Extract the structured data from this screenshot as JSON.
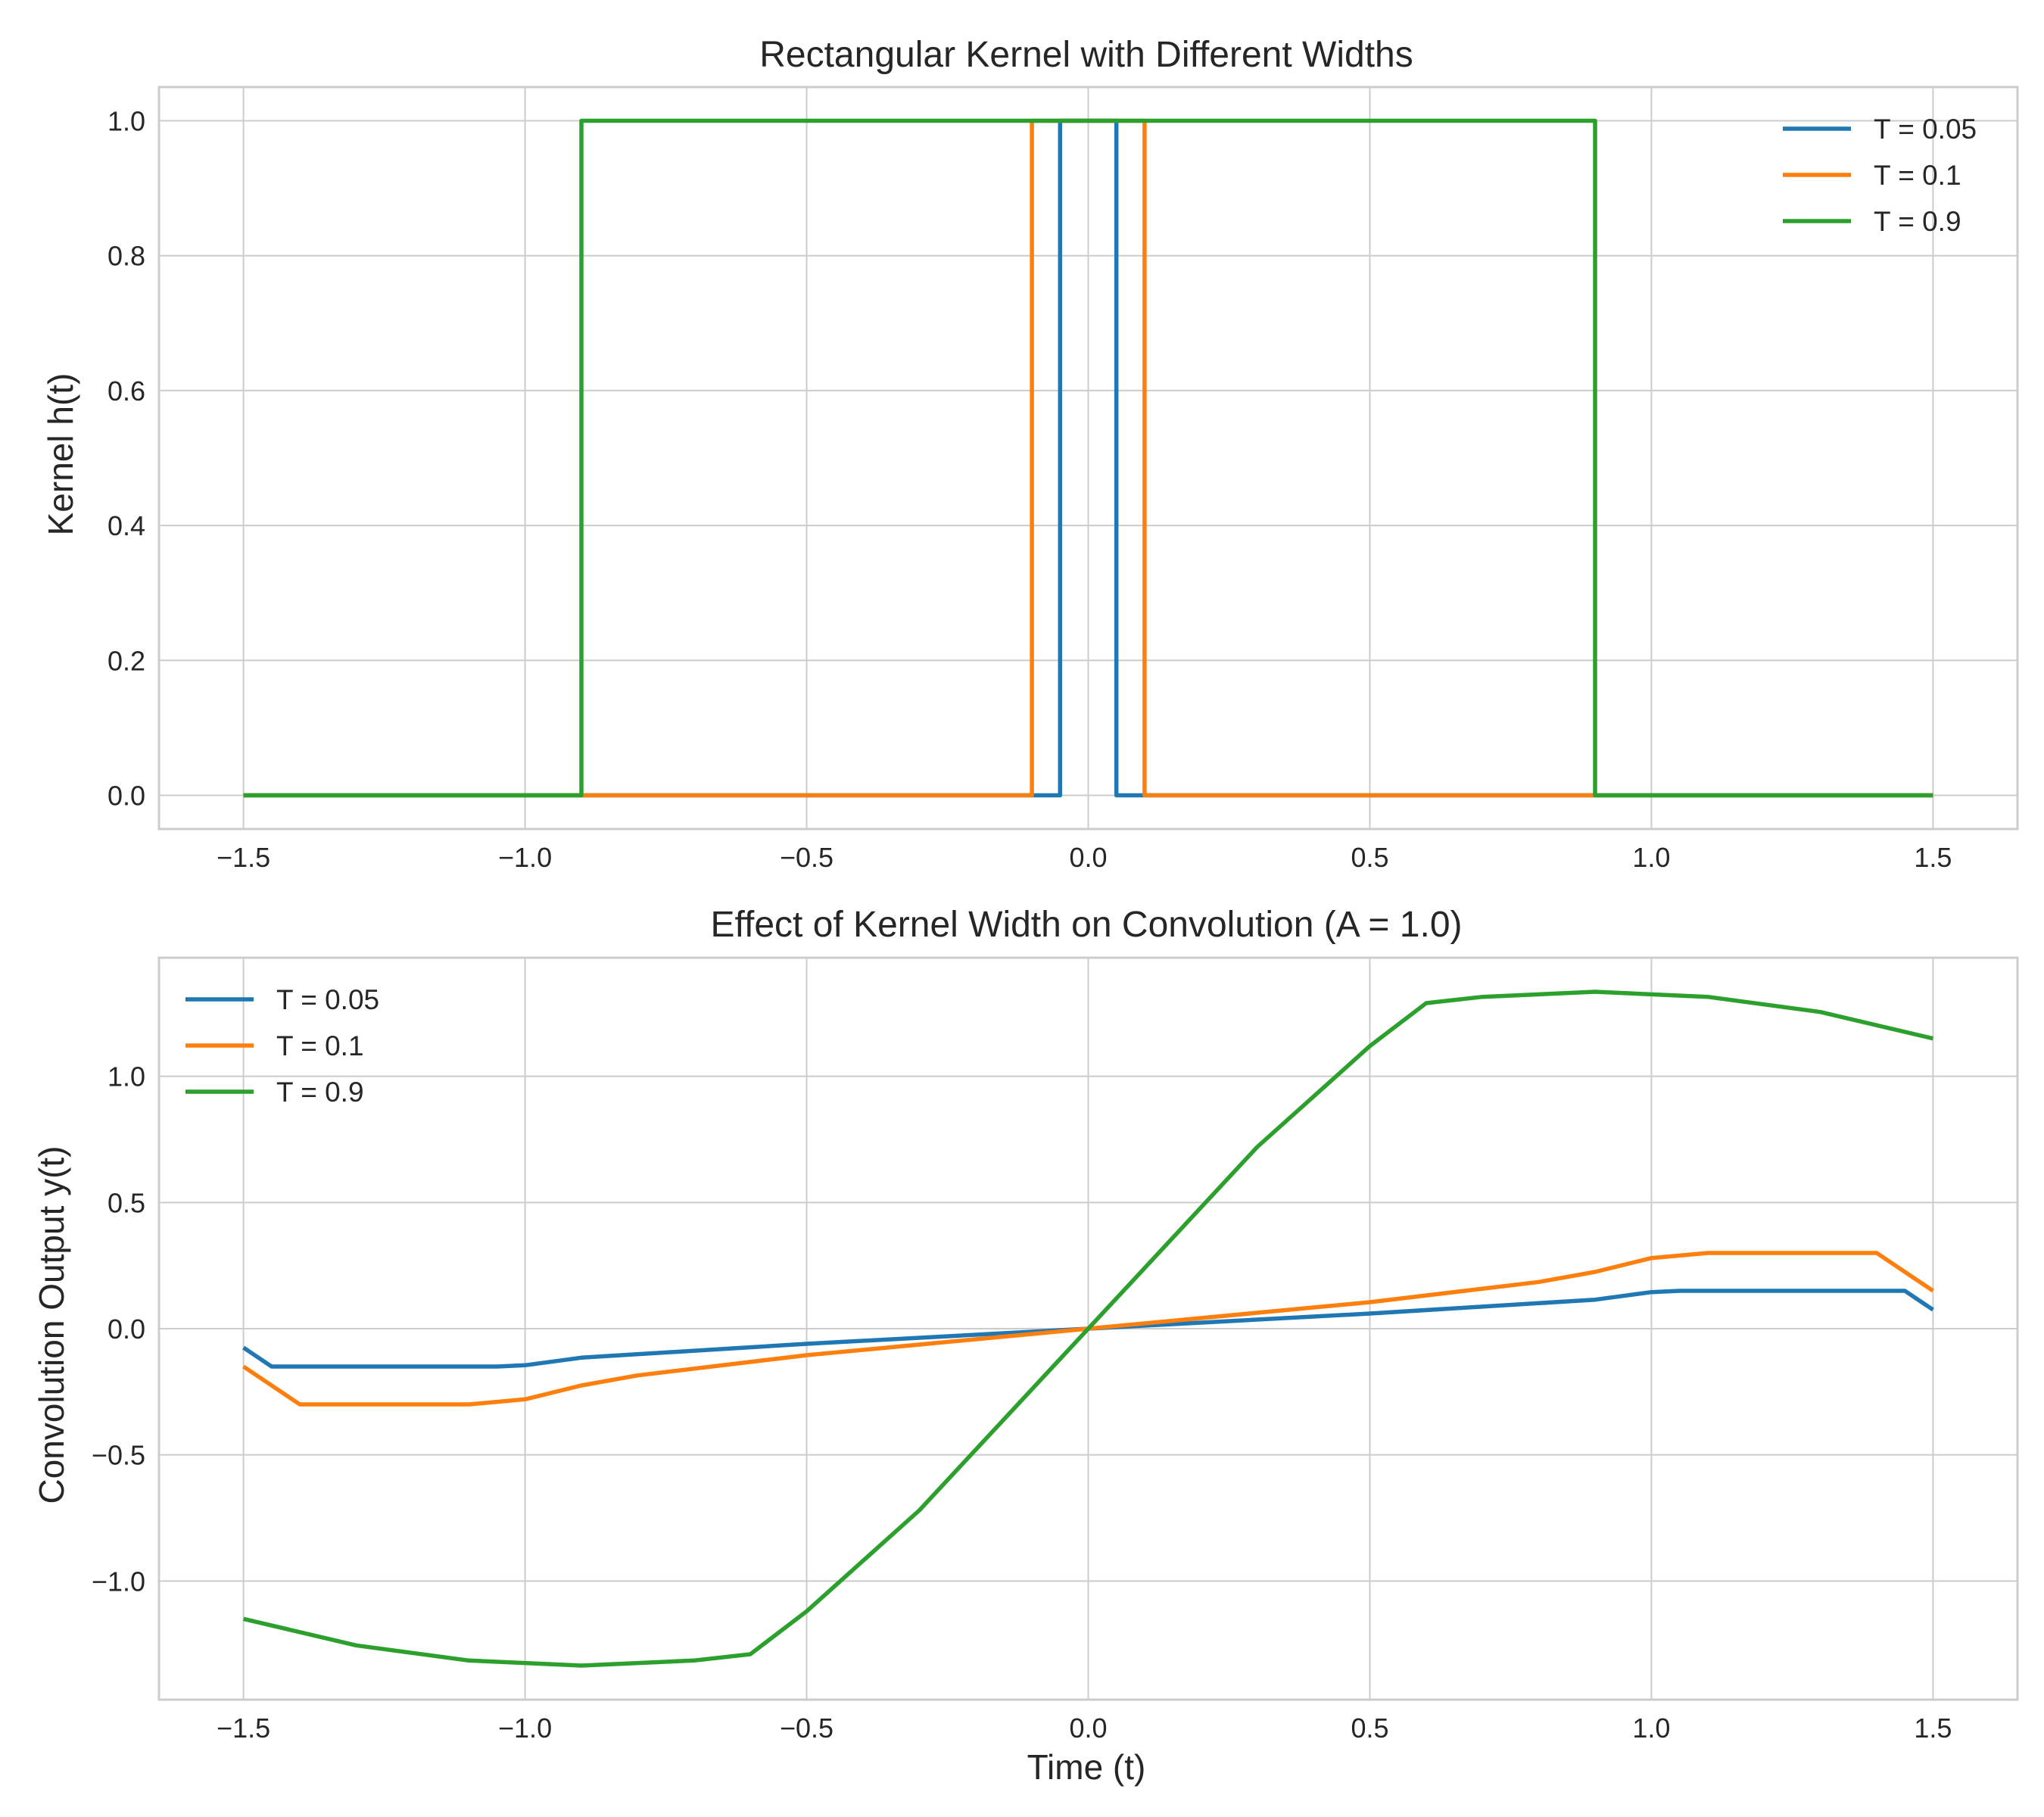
{
  "chart_data": [
    {
      "type": "line",
      "title": "Rectangular Kernel with Different Widths",
      "xlabel": "",
      "ylabel": "Kernel h(t)",
      "xlim": [
        -1.65,
        1.65
      ],
      "ylim": [
        -0.05,
        1.05
      ],
      "xticks": [
        -1.5,
        -1.0,
        -0.5,
        0.0,
        0.5,
        1.0,
        1.5
      ],
      "xtick_labels": [
        "−1.5",
        "−1.0",
        "−0.5",
        "0.0",
        "0.5",
        "1.0",
        "1.5"
      ],
      "yticks": [
        0.0,
        0.2,
        0.4,
        0.6,
        0.8,
        1.0
      ],
      "ytick_labels": [
        "0.0",
        "0.2",
        "0.4",
        "0.6",
        "0.8",
        "1.0"
      ],
      "grid": true,
      "legend_position": "top-right",
      "series": [
        {
          "name": "T = 0.05",
          "color": "#1f77b4",
          "x": [
            -1.5,
            -0.05,
            -0.05,
            0.05,
            0.05,
            1.5
          ],
          "y": [
            0,
            0,
            1,
            1,
            0,
            0
          ]
        },
        {
          "name": "T = 0.1",
          "color": "#ff7f0e",
          "x": [
            -1.5,
            -0.1,
            -0.1,
            0.1,
            0.1,
            1.5
          ],
          "y": [
            0,
            0,
            1,
            1,
            0,
            0
          ]
        },
        {
          "name": "T = 0.9",
          "color": "#2ca02c",
          "x": [
            -1.5,
            -0.9,
            -0.9,
            0.9,
            0.9,
            1.5
          ],
          "y": [
            0,
            0,
            1,
            1,
            0,
            0
          ]
        }
      ]
    },
    {
      "type": "line",
      "title": "Effect of Kernel Width on Convolution (A = 1.0)",
      "xlabel": "Time (t)",
      "ylabel": "Convolution Output y(t)",
      "xlim": [
        -1.65,
        1.65
      ],
      "ylim": [
        -1.47,
        1.47
      ],
      "xticks": [
        -1.5,
        -1.0,
        -0.5,
        0.0,
        0.5,
        1.0,
        1.5
      ],
      "xtick_labels": [
        "−1.5",
        "−1.0",
        "−0.5",
        "0.0",
        "0.5",
        "1.0",
        "1.5"
      ],
      "yticks": [
        -1.0,
        -0.5,
        0.0,
        0.5,
        1.0
      ],
      "ytick_labels": [
        "−1.0",
        "−0.5",
        "0.0",
        "0.5",
        "1.0"
      ],
      "grid": true,
      "legend_position": "top-left",
      "series": [
        {
          "name": "T = 0.05",
          "color": "#1f77b4",
          "x": [
            -1.5,
            -1.45,
            -1.05,
            -1.0,
            -0.95,
            -0.9,
            -0.5,
            0.0,
            0.5,
            0.9,
            0.95,
            1.0,
            1.05,
            1.45,
            1.5
          ],
          "y": [
            -0.075,
            -0.15,
            -0.15,
            -0.145,
            -0.13,
            -0.115,
            -0.06,
            0.0,
            0.06,
            0.115,
            0.13,
            0.145,
            0.15,
            0.15,
            0.075
          ]
        },
        {
          "name": "T = 0.1",
          "color": "#ff7f0e",
          "x": [
            -1.5,
            -1.4,
            -1.1,
            -1.0,
            -0.9,
            -0.8,
            -0.5,
            0.0,
            0.5,
            0.8,
            0.9,
            1.0,
            1.1,
            1.4,
            1.5
          ],
          "y": [
            -0.15,
            -0.3,
            -0.3,
            -0.28,
            -0.225,
            -0.185,
            -0.105,
            0.0,
            0.105,
            0.185,
            0.225,
            0.28,
            0.3,
            0.3,
            0.15
          ]
        },
        {
          "name": "T = 0.9",
          "color": "#2ca02c",
          "x": [
            -1.5,
            -1.3,
            -1.1,
            -0.9,
            -0.7,
            -0.6,
            -0.5,
            -0.3,
            -0.1,
            0.0,
            0.1,
            0.3,
            0.5,
            0.6,
            0.7,
            0.9,
            1.1,
            1.3,
            1.5
          ],
          "y": [
            -1.15,
            -1.255,
            -1.315,
            -1.335,
            -1.315,
            -1.29,
            -1.12,
            -0.72,
            -0.24,
            0.0,
            0.24,
            0.72,
            1.12,
            1.29,
            1.315,
            1.335,
            1.315,
            1.255,
            1.15
          ]
        }
      ]
    }
  ]
}
